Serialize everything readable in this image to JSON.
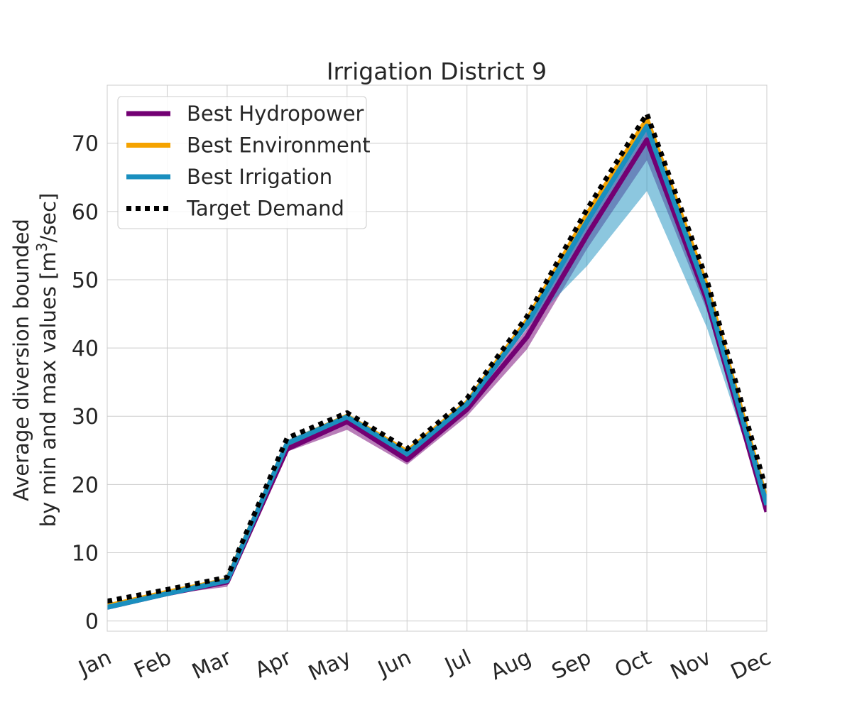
{
  "chart_data": {
    "type": "line",
    "title": "Irrigation District 9",
    "ylabel_line1": "Average diversion bounded",
    "ylabel_line2_prefix": "by min and max values [m",
    "ylabel_line2_sup": "3",
    "ylabel_line2_suffix": "/sec]",
    "categories": [
      "Jan",
      "Feb",
      "Mar",
      "Apr",
      "May",
      "Jun",
      "Jul",
      "Aug",
      "Sep",
      "Oct",
      "Nov",
      "Dec"
    ],
    "ylim": [
      -1.5,
      78.5
    ],
    "yticks": [
      0,
      10,
      20,
      30,
      40,
      50,
      60,
      70
    ],
    "grid": true,
    "legend_position": "top-left",
    "series": [
      {
        "name": "Best Hydropower",
        "color": "#730073",
        "style": "solid",
        "values": [
          2.0,
          4.0,
          5.7,
          25.2,
          29.2,
          23.6,
          31.0,
          41.6,
          56.5,
          70.5,
          47.0,
          16.0
        ],
        "min": [
          1.9,
          3.9,
          5.0,
          24.8,
          28.0,
          22.9,
          30.0,
          39.8,
          54.5,
          67.5,
          45.5,
          15.9
        ],
        "max": [
          2.1,
          4.1,
          6.1,
          25.6,
          29.8,
          24.3,
          31.6,
          42.8,
          57.8,
          71.8,
          48.0,
          16.4
        ]
      },
      {
        "name": "Best Environment",
        "color": "#f5a300",
        "style": "solid",
        "values": [
          2.2,
          4.2,
          6.0,
          26.0,
          30.0,
          24.8,
          32.0,
          44.0,
          59.5,
          73.5,
          49.0,
          17.5
        ],
        "min": [
          2.1,
          4.1,
          5.9,
          25.8,
          29.7,
          24.5,
          31.8,
          43.5,
          59.0,
          72.8,
          48.6,
          17.2
        ],
        "max": [
          2.3,
          4.3,
          6.1,
          26.2,
          30.2,
          25.0,
          32.2,
          44.3,
          59.9,
          74.0,
          49.4,
          17.8
        ]
      },
      {
        "name": "Best Irrigation",
        "color": "#1a8fbf",
        "style": "solid",
        "values": [
          2.0,
          4.0,
          5.9,
          26.0,
          29.9,
          24.5,
          31.8,
          43.5,
          58.5,
          72.5,
          48.0,
          17.0
        ],
        "min": [
          1.8,
          3.9,
          5.6,
          25.5,
          29.2,
          23.8,
          31.0,
          43.0,
          52.0,
          63.0,
          43.0,
          16.4
        ],
        "max": [
          2.2,
          4.2,
          6.2,
          26.5,
          30.4,
          25.0,
          32.4,
          44.5,
          60.0,
          74.0,
          49.5,
          17.8
        ]
      },
      {
        "name": "Target Demand",
        "color": "#000000",
        "style": "dotted",
        "values": [
          2.9,
          4.6,
          6.4,
          26.8,
          30.5,
          25.2,
          32.6,
          44.6,
          60.3,
          74.3,
          50.0,
          18.9
        ]
      }
    ]
  }
}
